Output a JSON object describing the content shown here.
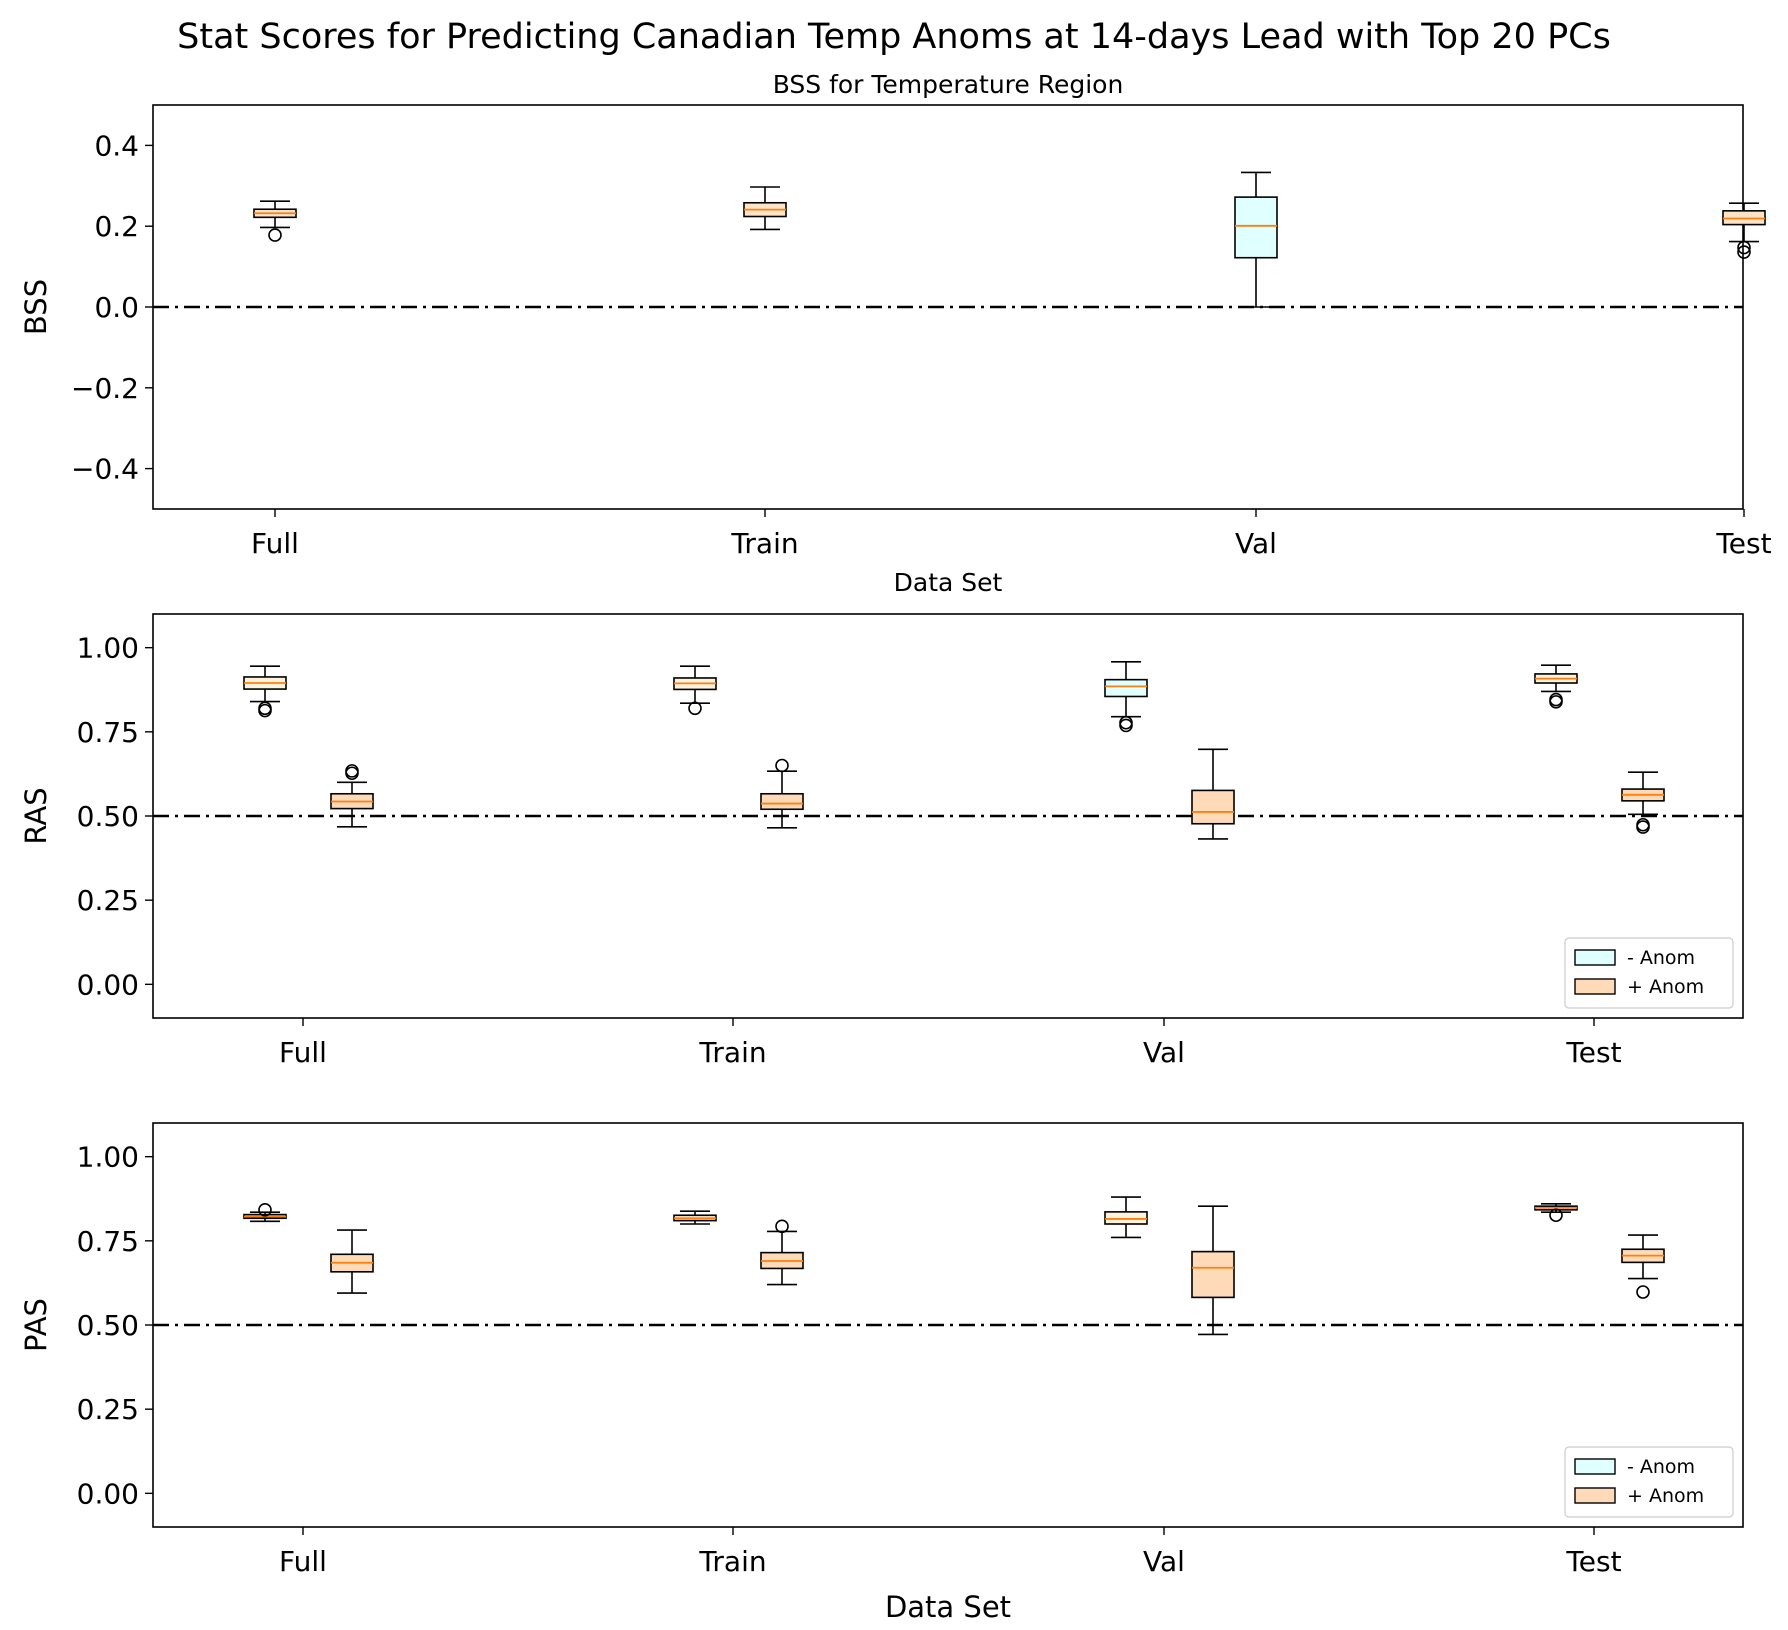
{
  "suptitle": "Stat Scores for Predicting Canadian Temp Anoms at 14-days Lead with Top 20 PCs",
  "chart_data": [
    {
      "type": "box",
      "id": "bss",
      "title": "BSS for Temperature Region",
      "xlabel": "Data Set",
      "ylabel": "BSS",
      "ylim": [
        -0.5,
        0.5
      ],
      "yticks": [
        -0.4,
        -0.2,
        0.0,
        0.2,
        0.4
      ],
      "ytick_labels": [
        "−0.4",
        "−0.2",
        "0.0",
        "0.2",
        "0.4"
      ],
      "categories": [
        "Full",
        "Train",
        "Val",
        "Test"
      ],
      "reference_line": 0.0,
      "legend": null,
      "boxes": [
        {
          "category": "Full",
          "series": "single",
          "color": "#fde4c8",
          "min": 0.197,
          "q1": 0.222,
          "median": 0.232,
          "q3": 0.242,
          "max": 0.262,
          "outliers": [
            0.178
          ]
        },
        {
          "category": "Train",
          "series": "single",
          "color": "#fde4c8",
          "min": 0.192,
          "q1": 0.224,
          "median": 0.241,
          "q3": 0.258,
          "max": 0.297,
          "outliers": []
        },
        {
          "category": "Val",
          "series": "single",
          "color": "#e0ffff",
          "min": 0.0,
          "q1": 0.122,
          "median": 0.201,
          "q3": 0.272,
          "max": 0.333,
          "outliers": []
        },
        {
          "category": "Test",
          "series": "single",
          "color": "#fde4c8",
          "min": 0.162,
          "q1": 0.204,
          "median": 0.219,
          "q3": 0.238,
          "max": 0.257,
          "outliers": [
            0.136,
            0.147
          ]
        }
      ]
    },
    {
      "type": "box",
      "id": "ras",
      "title": "",
      "xlabel": "",
      "ylabel": "RAS",
      "ylim": [
        -0.1,
        1.1
      ],
      "yticks": [
        0.0,
        0.25,
        0.5,
        0.75,
        1.0
      ],
      "ytick_labels": [
        "0.00",
        "0.25",
        "0.50",
        "0.75",
        "1.00"
      ],
      "categories": [
        "Full",
        "Train",
        "Val",
        "Test"
      ],
      "reference_line": 0.5,
      "legend": {
        "placement": "lower-right",
        "entries": [
          {
            "label": "- Anom",
            "color": "#e0ffff"
          },
          {
            "label": "+ Anom",
            "color": "#ffdab9"
          }
        ]
      },
      "boxes": [
        {
          "category": "Full",
          "series": "- Anom",
          "color": "#fcf2dd",
          "min": 0.84,
          "q1": 0.877,
          "median": 0.895,
          "q3": 0.913,
          "max": 0.945,
          "outliers": [
            0.813,
            0.82
          ]
        },
        {
          "category": "Full",
          "series": "+ Anom",
          "color": "#ffdab9",
          "min": 0.468,
          "q1": 0.522,
          "median": 0.543,
          "q3": 0.566,
          "max": 0.6,
          "outliers": [
            0.627,
            0.634
          ]
        },
        {
          "category": "Train",
          "series": "- Anom",
          "color": "#fcf2dd",
          "min": 0.835,
          "q1": 0.876,
          "median": 0.894,
          "q3": 0.91,
          "max": 0.945,
          "outliers": [
            0.82
          ]
        },
        {
          "category": "Train",
          "series": "+ Anom",
          "color": "#ffdab9",
          "min": 0.465,
          "q1": 0.52,
          "median": 0.537,
          "q3": 0.566,
          "max": 0.633,
          "outliers": [
            0.65
          ]
        },
        {
          "category": "Val",
          "series": "- Anom",
          "color": "#e0ffff",
          "min": 0.795,
          "q1": 0.855,
          "median": 0.885,
          "q3": 0.905,
          "max": 0.958,
          "outliers": [
            0.769,
            0.777
          ]
        },
        {
          "category": "Val",
          "series": "+ Anom",
          "color": "#ffdab9",
          "min": 0.432,
          "q1": 0.477,
          "median": 0.512,
          "q3": 0.576,
          "max": 0.698,
          "outliers": []
        },
        {
          "category": "Test",
          "series": "- Anom",
          "color": "#fcf2dd",
          "min": 0.87,
          "q1": 0.895,
          "median": 0.908,
          "q3": 0.922,
          "max": 0.948,
          "outliers": [
            0.839,
            0.846
          ]
        },
        {
          "category": "Test",
          "series": "+ Anom",
          "color": "#ffdab9",
          "min": 0.505,
          "q1": 0.545,
          "median": 0.563,
          "q3": 0.58,
          "max": 0.63,
          "outliers": [
            0.467,
            0.474
          ]
        }
      ]
    },
    {
      "type": "box",
      "id": "pas",
      "title": "",
      "xlabel": "Data Set",
      "ylabel": "PAS",
      "ylim": [
        -0.1,
        1.1
      ],
      "yticks": [
        0.0,
        0.25,
        0.5,
        0.75,
        1.0
      ],
      "ytick_labels": [
        "0.00",
        "0.25",
        "0.50",
        "0.75",
        "1.00"
      ],
      "categories": [
        "Full",
        "Train",
        "Val",
        "Test"
      ],
      "reference_line": 0.5,
      "legend": {
        "placement": "lower-right",
        "entries": [
          {
            "label": "- Anom",
            "color": "#e0ffff"
          },
          {
            "label": "+ Anom",
            "color": "#ffdab9"
          }
        ]
      },
      "boxes": [
        {
          "category": "Full",
          "series": "- Anom",
          "color": "#fde4c8",
          "min": 0.808,
          "q1": 0.817,
          "median": 0.822,
          "q3": 0.828,
          "max": 0.835,
          "outliers": [
            0.842
          ]
        },
        {
          "category": "Full",
          "series": "+ Anom",
          "color": "#ffdab9",
          "min": 0.595,
          "q1": 0.658,
          "median": 0.685,
          "q3": 0.71,
          "max": 0.782,
          "outliers": []
        },
        {
          "category": "Train",
          "series": "- Anom",
          "color": "#fde4c8",
          "min": 0.8,
          "q1": 0.81,
          "median": 0.817,
          "q3": 0.826,
          "max": 0.838,
          "outliers": []
        },
        {
          "category": "Train",
          "series": "+ Anom",
          "color": "#ffdab9",
          "min": 0.62,
          "q1": 0.668,
          "median": 0.69,
          "q3": 0.715,
          "max": 0.778,
          "outliers": [
            0.793
          ]
        },
        {
          "category": "Val",
          "series": "- Anom",
          "color": "#fcf2dd",
          "min": 0.76,
          "q1": 0.8,
          "median": 0.815,
          "q3": 0.836,
          "max": 0.88,
          "outliers": []
        },
        {
          "category": "Val",
          "series": "+ Anom",
          "color": "#ffdab9",
          "min": 0.472,
          "q1": 0.582,
          "median": 0.67,
          "q3": 0.718,
          "max": 0.853,
          "outliers": []
        },
        {
          "category": "Test",
          "series": "- Anom",
          "color": "#fde4c8",
          "min": 0.835,
          "q1": 0.842,
          "median": 0.848,
          "q3": 0.853,
          "max": 0.86,
          "outliers": [
            0.826
          ]
        },
        {
          "category": "Test",
          "series": "+ Anom",
          "color": "#ffdab9",
          "min": 0.638,
          "q1": 0.686,
          "median": 0.706,
          "q3": 0.725,
          "max": 0.767,
          "outliers": [
            0.598
          ]
        }
      ]
    }
  ]
}
